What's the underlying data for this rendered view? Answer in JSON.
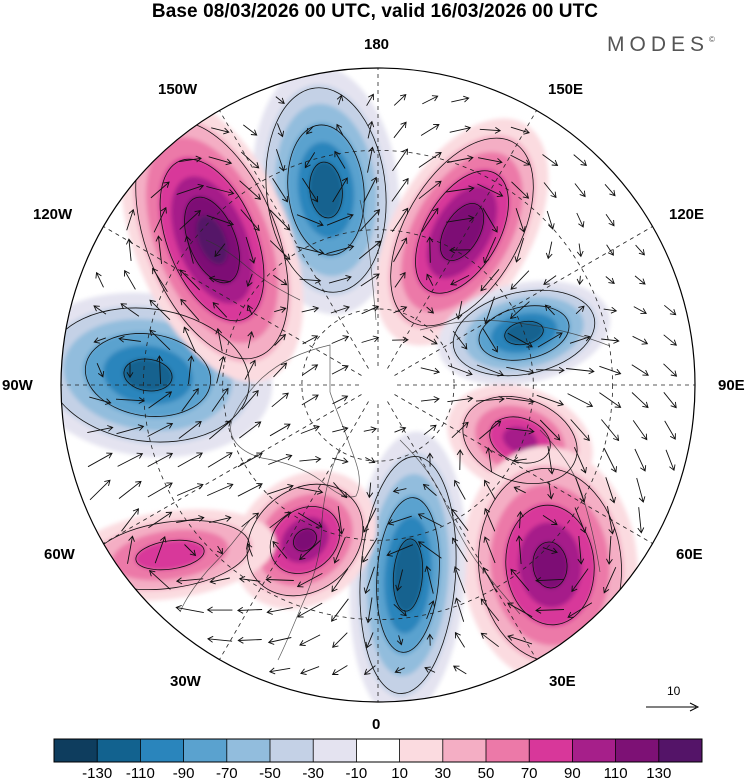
{
  "title": "Base 08/03/2026 00 UTC, valid 16/03/2026 00 UTC",
  "logo": {
    "text": "MODES",
    "mark": "©"
  },
  "longitude_labels": {
    "n180": "180",
    "e150": "150E",
    "w150": "150W",
    "e120": "120E",
    "w120": "120W",
    "e90": "90E",
    "w90": "90W",
    "e60": "60E",
    "w60": "60W",
    "e30": "30E",
    "w30": "30W",
    "s0": "0"
  },
  "reference_vector": {
    "label": "10"
  },
  "colorbar": {
    "ticks": [
      "-130",
      "-110",
      "-90",
      "-70",
      "-50",
      "-30",
      "-10",
      "10",
      "30",
      "50",
      "70",
      "90",
      "110",
      "130"
    ],
    "colors": [
      "#0e3d5e",
      "#12628f",
      "#2a85bc",
      "#5aa2cf",
      "#92bddd",
      "#c4d1e6",
      "#e4e3f0",
      "#ffffff",
      "#fbdbe0",
      "#f4aec4",
      "#ec79a8",
      "#d8379a",
      "#a61f8a",
      "#7d1175",
      "#541468"
    ]
  },
  "anomaly_centers": [
    {
      "name": "low-180",
      "value": -120
    },
    {
      "name": "high-150e",
      "value": 125
    },
    {
      "name": "low-120e",
      "value": -120
    },
    {
      "name": "high-75e",
      "value": 95
    },
    {
      "name": "high-45e",
      "value": 115
    },
    {
      "name": "low-0",
      "value": -125
    },
    {
      "name": "high-45w",
      "value": 110
    },
    {
      "name": "high-75w",
      "value": 80
    },
    {
      "name": "low-90w",
      "value": -115
    },
    {
      "name": "high-140w",
      "value": 135
    }
  ]
}
